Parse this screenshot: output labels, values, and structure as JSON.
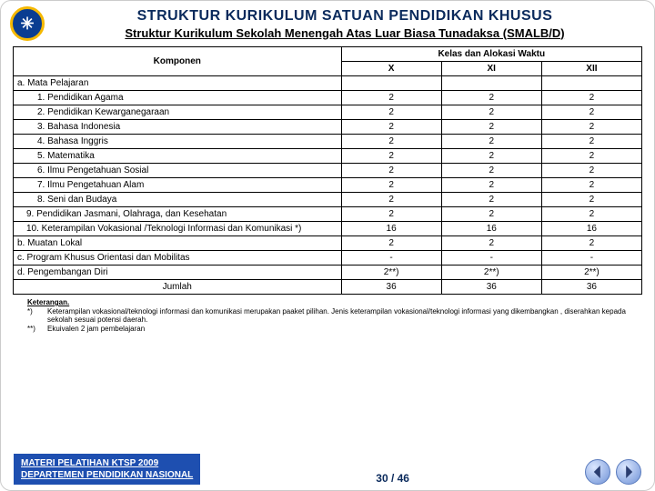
{
  "header": {
    "title": "STRUKTUR KURIKULUM SATUAN PENDIDIKAN KHUSUS",
    "subtitle": "Struktur Kurikulum Sekolah Menengah Atas Luar Biasa Tunadaksa (SMALB/D)",
    "logo_glyph": "✳"
  },
  "table": {
    "headers": {
      "komponen": "Komponen",
      "alokasi": "Kelas dan Alokasi Waktu",
      "x": "X",
      "xi": "XI",
      "xii": "XII"
    },
    "rows": [
      {
        "label": "a.   Mata Pelajaran",
        "indent": 0,
        "x": "",
        "xi": "",
        "xii": ""
      },
      {
        "label": "1.   Pendidikan Agama",
        "indent": 2,
        "x": "2",
        "xi": "2",
        "xii": "2"
      },
      {
        "label": "2.   Pendidikan Kewarganegaraan",
        "indent": 2,
        "x": "2",
        "xi": "2",
        "xii": "2"
      },
      {
        "label": "3.   Bahasa Indonesia",
        "indent": 2,
        "x": "2",
        "xi": "2",
        "xii": "2"
      },
      {
        "label": "4.   Bahasa Inggris",
        "indent": 2,
        "x": "2",
        "xi": "2",
        "xii": "2"
      },
      {
        "label": "5.   Matematika",
        "indent": 2,
        "x": "2",
        "xi": "2",
        "xii": "2"
      },
      {
        "label": "6.   Ilmu Pengetahuan Sosial",
        "indent": 2,
        "x": "2",
        "xi": "2",
        "xii": "2"
      },
      {
        "label": "7.   Ilmu Pengetahuan Alam",
        "indent": 2,
        "x": "2",
        "xi": "2",
        "xii": "2"
      },
      {
        "label": "8.   Seni dan Budaya",
        "indent": 2,
        "x": "2",
        "xi": "2",
        "xii": "2"
      },
      {
        "label": "9.    Pendidikan Jasmani, Olahraga, dan Kesehatan",
        "indent": 1,
        "x": "2",
        "xi": "2",
        "xii": "2"
      },
      {
        "label": "10.    Keterampilan Vokasional /Teknologi Informasi dan Komunikasi *)",
        "indent": 1,
        "x": "16",
        "xi": "16",
        "xii": "16"
      },
      {
        "label": "b. Muatan Lokal",
        "indent": 0,
        "x": "2",
        "xi": "2",
        "xii": "2"
      },
      {
        "label": "c. Program Khusus Orientasi dan Mobilitas",
        "indent": 0,
        "x": "-",
        "xi": "-",
        "xii": "-"
      },
      {
        "label": "d. Pengembangan Diri",
        "indent": 0,
        "x": "2**)",
        "xi": "2**)",
        "xii": "2**)"
      }
    ],
    "total": {
      "label": "Jumlah",
      "x": "36",
      "xi": "36",
      "xii": "36"
    }
  },
  "notes": {
    "title": "Keterangan.",
    "n1_key": "*)",
    "n1_txt": "Keterampilan vokasional/teknologi informasi dan komunikasi merupakan paaket pilihan. Jenis keterampilan vokasional/teknologi informasi yang dikembangkan , diserahkan kepada sekolah sesuai potensi daerah.",
    "n2_key": "**)",
    "n2_txt": "Ekuivalen 2 jam pembelajaran"
  },
  "footer": {
    "left1": "MATERI PELATIHAN KTSP 2009",
    "left2": "DEPARTEMEN PENDIDIKAN NASIONAL",
    "page": "30 / 46"
  },
  "style": {
    "accent": "#0a2a5c",
    "footer_bg": "#1e4fb0",
    "nav_fill": "#2a3d70"
  }
}
